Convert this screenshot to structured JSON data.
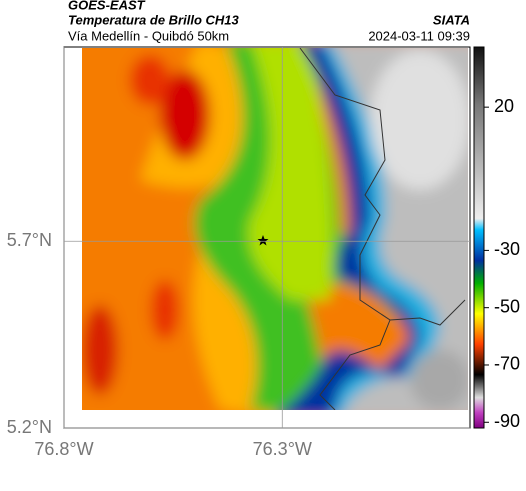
{
  "header": {
    "title": "GOES-EAST",
    "subtitle": "Temperatura de Brillo CH13",
    "route": "Vía Medellín - Quibdó 50km",
    "source": "SIATA",
    "datetime": "2024-03-11 09:39"
  },
  "map": {
    "lon_lim": [
      -76.8,
      -75.87
    ],
    "lat_lim": [
      5.2,
      6.22
    ],
    "lon_ticks": [
      {
        "value": -76.8,
        "label": "76.8°W"
      },
      {
        "value": -76.3,
        "label": "76.3°W"
      }
    ],
    "lat_ticks": [
      {
        "value": 5.7,
        "label": "5.7°N"
      },
      {
        "value": 5.2,
        "label": "5.2°N"
      }
    ]
  },
  "colorbar": {
    "lim": [
      41,
      -92
    ],
    "ticks": [
      20,
      -30,
      -50,
      -70,
      -90
    ]
  }
}
